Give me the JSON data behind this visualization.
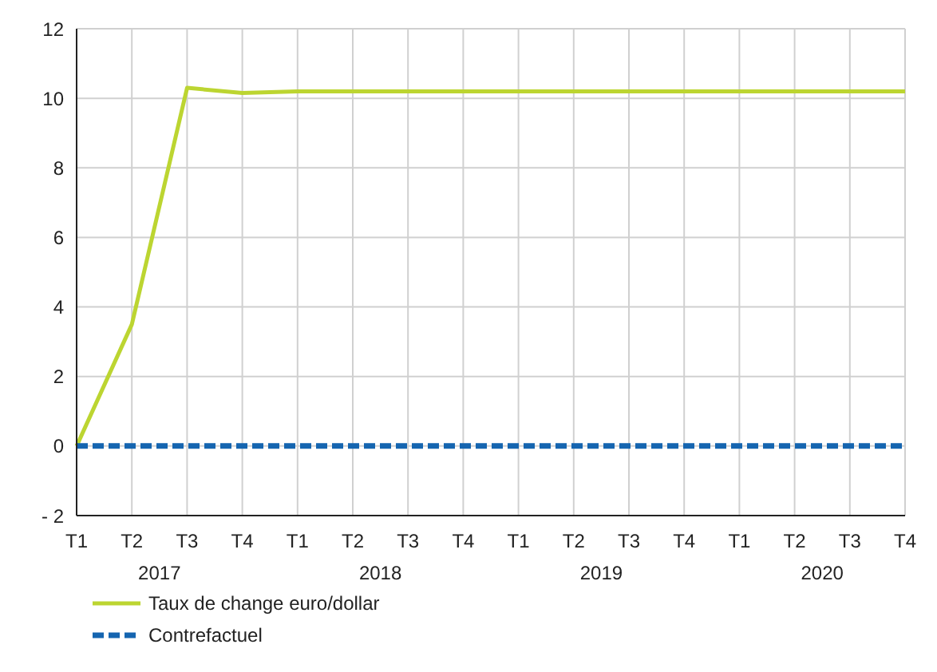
{
  "chart_data": {
    "type": "line",
    "categories": [
      "T1",
      "T2",
      "T3",
      "T4",
      "T1",
      "T2",
      "T3",
      "T4",
      "T1",
      "T2",
      "T3",
      "T4",
      "T1",
      "T2",
      "T3",
      "T4"
    ],
    "annotations": [
      "2017",
      "2018",
      "2019",
      "2020"
    ],
    "series": [
      {
        "name": "Taux de change euro/dollar",
        "color": "#bcd531",
        "line_style": "solid",
        "values": [
          0,
          3.5,
          10.3,
          10.15,
          10.2,
          10.2,
          10.2,
          10.2,
          10.2,
          10.2,
          10.2,
          10.2,
          10.2,
          10.2,
          10.2,
          10.2
        ]
      },
      {
        "name": "Contrefactuel",
        "color": "#1565b0",
        "line_style": "dashed",
        "values": [
          0,
          0,
          0,
          0,
          0,
          0,
          0,
          0,
          0,
          0,
          0,
          0,
          0,
          0,
          0,
          0
        ]
      }
    ],
    "ylim": [
      -2,
      12
    ],
    "yticks": [
      {
        "value": -2,
        "label": "- 2"
      },
      0,
      2,
      4,
      6,
      8,
      10,
      12
    ],
    "grid": true,
    "legend": "bottom left",
    "marker": "none"
  }
}
